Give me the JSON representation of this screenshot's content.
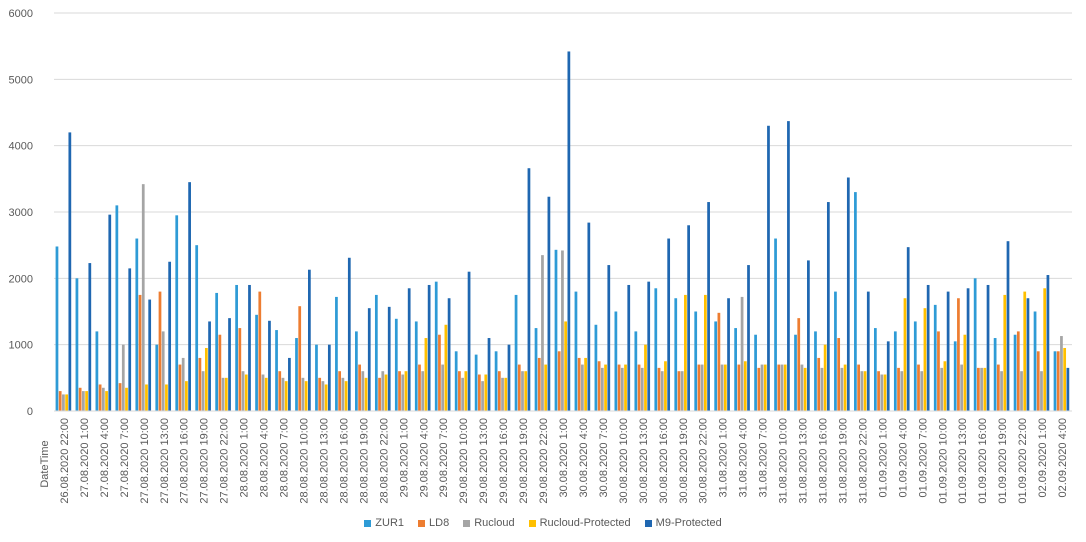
{
  "chart_data": {
    "type": "bar",
    "title": "",
    "xlabel": "DateTime",
    "ylabel": "",
    "ylim": [
      0,
      6000
    ],
    "yticks": [
      "0",
      "1000",
      "2000",
      "3000",
      "4000",
      "5000",
      "6000"
    ],
    "grid": true,
    "legend_position": "bottom",
    "categories": [
      "26.08.2020 22:00",
      "27.08.2020 1:00",
      "27.08.2020 4:00",
      "27.08.2020 7:00",
      "27.08.2020 10:00",
      "27.08.2020 13:00",
      "27.08.2020 16:00",
      "27.08.2020 19:00",
      "27.08.2020 22:00",
      "28.08.2020 1:00",
      "28.08.2020 4:00",
      "28.08.2020 7:00",
      "28.08.2020 10:00",
      "28.08.2020 13:00",
      "28.08.2020 16:00",
      "28.08.2020 19:00",
      "28.08.2020 22:00",
      "29.08.2020 1:00",
      "29.08.2020 4:00",
      "29.08.2020 7:00",
      "29.08.2020 10:00",
      "29.08.2020 13:00",
      "29.08.2020 16:00",
      "29.08.2020 19:00",
      "29.08.2020 22:00",
      "30.08.2020 1:00",
      "30.08.2020 4:00",
      "30.08.2020 7:00",
      "30.08.2020 10:00",
      "30.08.2020 13:00",
      "30.08.2020 16:00",
      "30.08.2020 19:00",
      "30.08.2020 22:00",
      "31.08.2020 1:00",
      "31.08.2020 4:00",
      "31.08.2020 7:00",
      "31.08.2020 10:00",
      "31.08.2020 13:00",
      "31.08.2020 16:00",
      "31.08.2020 19:00",
      "31.08.2020 22:00",
      "01.09.2020 1:00",
      "01.09.2020 4:00",
      "01.09.2020 7:00",
      "01.09.2020 10:00",
      "01.09.2020 13:00",
      "01.09.2020 16:00",
      "01.09.2020 19:00",
      "01.09.2020 22:00",
      "02.09.2020 1:00",
      "02.09.2020 4:00"
    ],
    "series": [
      {
        "name": "ZUR1",
        "color": "#2E9BD6",
        "values": [
          2480,
          2000,
          1200,
          3100,
          2600,
          1000,
          2950,
          2500,
          1780,
          1900,
          1450,
          1220,
          1100,
          1000,
          1720,
          1200,
          1750,
          1390,
          1350,
          1950,
          900,
          850,
          900,
          1750,
          1250,
          2430,
          1800,
          1300,
          1500,
          1200,
          1850,
          1700,
          1500,
          1350,
          1250,
          1150,
          2600,
          1150,
          1200,
          1800,
          3300,
          1250,
          1200,
          1350,
          1600,
          1050,
          2000,
          1100,
          1150,
          1500,
          900
        ]
      },
      {
        "name": "LD8",
        "color": "#ED7D31",
        "values": [
          300,
          350,
          400,
          420,
          1750,
          1800,
          700,
          800,
          1150,
          1250,
          1800,
          600,
          1580,
          500,
          600,
          700,
          500,
          600,
          700,
          1150,
          600,
          550,
          600,
          700,
          800,
          900,
          800,
          750,
          700,
          700,
          650,
          600,
          700,
          1480,
          700,
          650,
          700,
          1400,
          800,
          1100,
          700,
          600,
          650,
          700,
          1200,
          1700,
          650,
          700,
          1200,
          900,
          900
        ]
      },
      {
        "name": "Rucloud",
        "color": "#A5A5A5",
        "values": [
          250,
          300,
          350,
          1000,
          3420,
          1200,
          800,
          600,
          500,
          600,
          550,
          500,
          500,
          450,
          500,
          600,
          600,
          550,
          600,
          700,
          500,
          450,
          500,
          600,
          2350,
          2420,
          700,
          650,
          650,
          650,
          600,
          600,
          700,
          700,
          1720,
          700,
          700,
          700,
          650,
          650,
          600,
          550,
          600,
          600,
          650,
          700,
          650,
          600,
          600,
          600,
          1130
        ]
      },
      {
        "name": "Rucloud-Protected",
        "color": "#FFC000",
        "values": [
          250,
          300,
          300,
          350,
          400,
          400,
          450,
          950,
          500,
          550,
          500,
          450,
          450,
          400,
          450,
          500,
          550,
          600,
          1100,
          1300,
          600,
          550,
          500,
          600,
          700,
          1350,
          800,
          700,
          700,
          1000,
          750,
          1750,
          1750,
          700,
          750,
          700,
          700,
          650,
          1000,
          700,
          600,
          550,
          1700,
          1550,
          750,
          1150,
          650,
          1750,
          1800,
          1850,
          950
        ]
      },
      {
        "name": "M9-Protected",
        "color": "#1F67B1",
        "values": [
          4200,
          2230,
          2960,
          2150,
          1680,
          2250,
          3450,
          1350,
          1400,
          1900,
          1360,
          800,
          2130,
          1000,
          2310,
          1550,
          1570,
          1850,
          1900,
          1700,
          2100,
          1100,
          1000,
          3660,
          3230,
          5420,
          2840,
          2200,
          1900,
          1950,
          2600,
          2800,
          3150,
          1700,
          2200,
          4300,
          4370,
          2270,
          3150,
          3520,
          1800,
          1050,
          2470,
          1900,
          1800,
          1850,
          1900,
          2560,
          1700,
          2050,
          650
        ]
      }
    ]
  }
}
